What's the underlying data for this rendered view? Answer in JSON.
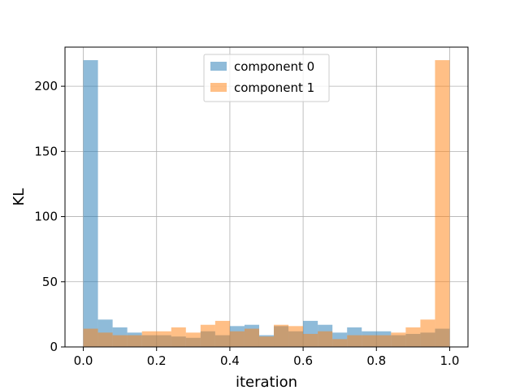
{
  "chart_data": {
    "type": "bar",
    "subtype": "overlapping-histogram",
    "xlabel": "iteration",
    "ylabel": "KL",
    "xlim": [
      -0.05,
      1.05
    ],
    "ylim": [
      0,
      230
    ],
    "x_ticks": [
      "0.0",
      "0.2",
      "0.4",
      "0.6",
      "0.8",
      "1.0"
    ],
    "y_ticks": [
      "0",
      "50",
      "100",
      "150",
      "200"
    ],
    "grid": true,
    "legend_position": "upper-center",
    "bin_edges": [
      0.0,
      0.04,
      0.08,
      0.12,
      0.16,
      0.2,
      0.24,
      0.28,
      0.32,
      0.36,
      0.4,
      0.44,
      0.48,
      0.52,
      0.56,
      0.6,
      0.64,
      0.68,
      0.72,
      0.76,
      0.8,
      0.84,
      0.88,
      0.92,
      0.96,
      1.0
    ],
    "series": [
      {
        "name": "component 0",
        "color": "#1f77b4",
        "opacity": 0.5,
        "values": [
          220,
          21,
          15,
          11,
          9,
          9,
          8,
          7,
          12,
          9,
          16,
          17,
          9,
          16,
          12,
          20,
          17,
          11,
          15,
          12,
          12,
          9,
          10,
          11,
          14
        ]
      },
      {
        "name": "component 1",
        "color": "#ff7f0e",
        "opacity": 0.5,
        "values": [
          14,
          11,
          9,
          9,
          12,
          12,
          15,
          11,
          17,
          20,
          12,
          14,
          8,
          17,
          16,
          10,
          12,
          6,
          9,
          9,
          9,
          11,
          15,
          21,
          220
        ]
      }
    ]
  }
}
